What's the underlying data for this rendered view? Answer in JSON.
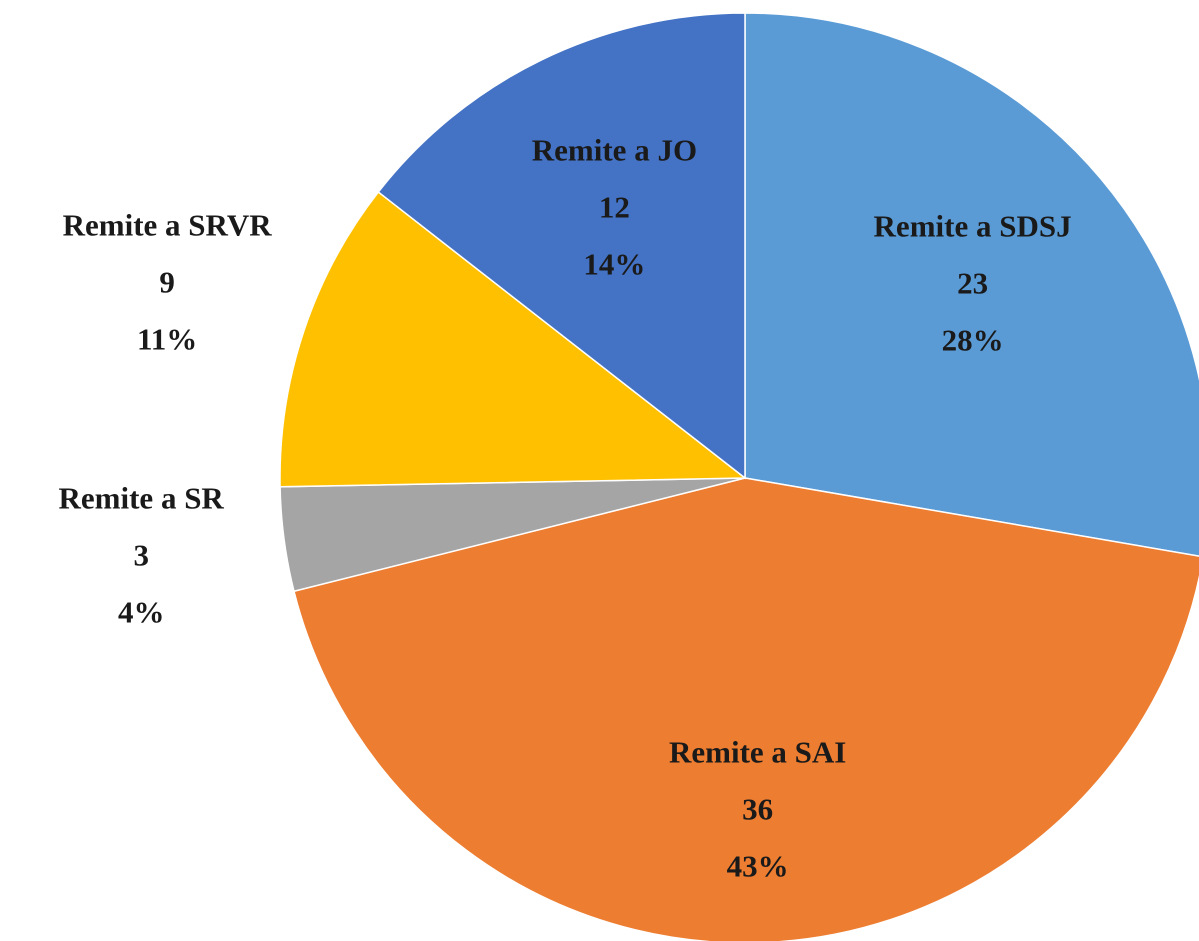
{
  "chart_data": {
    "type": "pie",
    "categories": [
      "Remite a SDSJ",
      "Remite a SAI",
      "Remite a SR",
      "Remite a SRVR",
      "Remite a JO"
    ],
    "values": [
      23,
      36,
      3,
      9,
      12
    ],
    "percent_labels": [
      "28%",
      "43%",
      "4%",
      "11%",
      "14%"
    ],
    "colors": [
      "#5b9bd5",
      "#ed7d31",
      "#a5a5a5",
      "#ffc000",
      "#4472c4"
    ]
  }
}
